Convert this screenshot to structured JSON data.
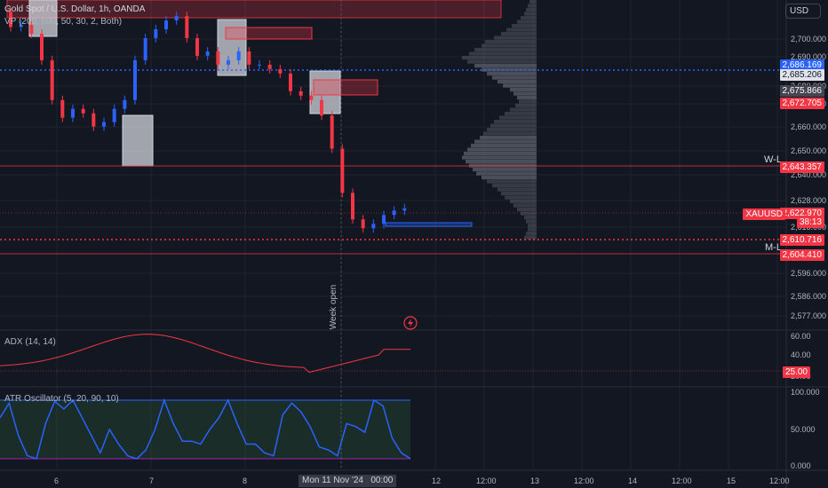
{
  "header": {
    "symbol_title": "Gold Spot / U.S. Dollar, 1h, OANDA",
    "vp_label": "VP (200, 500, 50, 30, 2, Both)",
    "currency_button": "USD"
  },
  "indicators": {
    "adx_label": "ADX (14, 14)",
    "atr_label": "ATR Oscillator (5, 20, 90, 10)",
    "week_open_label": "Week open"
  },
  "levels": {
    "wl_label": "W-L",
    "ml_label": "M-L"
  },
  "price_axis": {
    "ticks": [
      "2,700.000",
      "2,690.000",
      "2,680.000",
      "2,670.000",
      "2,660.000",
      "2,650.000",
      "2,640.000",
      "2,628.000",
      "2,618.000",
      "2,596.000",
      "2,586.000",
      "2,577.000"
    ],
    "tags": [
      {
        "value": "2,686.169",
        "bg": "#2962ff",
        "fg": "#ffffff"
      },
      {
        "value": "2,685.206",
        "bg": "#e0e3eb",
        "fg": "#131722"
      },
      {
        "value": "2,675.866",
        "bg": "#434651",
        "fg": "#ffffff"
      },
      {
        "value": "2,672.705",
        "bg": "#f23645",
        "fg": "#ffffff"
      },
      {
        "value": "2,643.357",
        "bg": "#f23645",
        "fg": "#ffffff"
      },
      {
        "value": "2,622.970",
        "bg": "#f23645",
        "fg": "#ffffff"
      },
      {
        "value": "38:13",
        "bg": "#f23645",
        "fg": "#ffffff"
      },
      {
        "value": "2,610.716",
        "bg": "#f23645",
        "fg": "#ffffff"
      },
      {
        "value": "2,604.410",
        "bg": "#f23645",
        "fg": "#ffffff"
      }
    ],
    "symbol_tag": "XAUUSD",
    "adx_ticks": [
      "60.00",
      "40.00",
      "20.00"
    ],
    "adx_tag": "25.00",
    "atr_ticks": [
      "100.000",
      "50.000",
      "0.000"
    ]
  },
  "time_axis": {
    "ticks": [
      "6",
      "7",
      "8",
      "12",
      "12:00",
      "13",
      "12:00",
      "14",
      "12:00",
      "15",
      "12:00"
    ],
    "crosshair_label": "Mon 11 Nov '24",
    "crosshair_time": "00:00"
  },
  "colors": {
    "up": "#2962ff",
    "down": "#f23645",
    "adx": "#f23645",
    "atr": "#2962ff",
    "bg": "#131722"
  },
  "chart_data": {
    "type": "candlestick",
    "title": "Gold Spot / U.S. Dollar, 1h, OANDA",
    "y_range": [
      2570,
      2715
    ],
    "closes_approx": [
      2705,
      2706,
      2702,
      2690,
      2672,
      2664,
      2668,
      2666,
      2660,
      2662,
      2668,
      2672,
      2690,
      2700,
      2704,
      2708,
      2710,
      2700,
      2692,
      2694,
      2688,
      2690,
      2694,
      2688,
      2688,
      2686,
      2684,
      2676,
      2674,
      2672,
      2665,
      2650,
      2630,
      2618,
      2614,
      2616,
      2620,
      2622,
      2623
    ],
    "adx_range": [
      20,
      60
    ],
    "atr_range": [
      0,
      100
    ]
  }
}
